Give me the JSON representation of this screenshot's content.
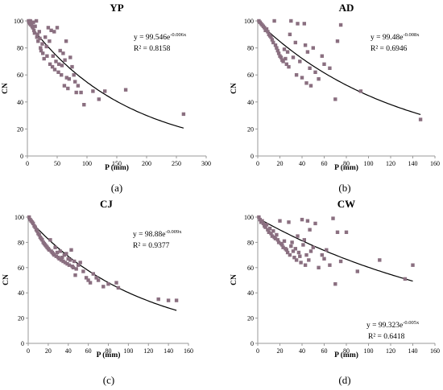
{
  "figure": {
    "panels": [
      "a",
      "b",
      "c",
      "d"
    ],
    "colors": {
      "marker": "#8a6f80",
      "curve": "#000000",
      "axis": "#999999"
    }
  },
  "chart_data": [
    {
      "type": "scatter",
      "title": "YP",
      "xlabel": "P (mm)",
      "ylabel": "CN",
      "panel_label": "(a)",
      "xlim": [
        0,
        300
      ],
      "ylim": [
        0,
        100
      ],
      "xticks": [
        "0",
        "50",
        "100",
        "150",
        "200",
        "250",
        "300"
      ],
      "yticks": [
        "0",
        "20",
        "40",
        "60",
        "80",
        "100"
      ],
      "grid": false,
      "legend": "none",
      "equation": {
        "base": "y = 99.546e",
        "exponent": "-0.006x",
        "r2": "R² = 0.8158"
      },
      "fit": {
        "a": 99.546,
        "b": -0.006
      },
      "points": [
        [
          2,
          100
        ],
        [
          3,
          99
        ],
        [
          4,
          98
        ],
        [
          5,
          100
        ],
        [
          6,
          97
        ],
        [
          7,
          98
        ],
        [
          8,
          96
        ],
        [
          9,
          95
        ],
        [
          10,
          99
        ],
        [
          11,
          93
        ],
        [
          12,
          91
        ],
        [
          13,
          96
        ],
        [
          15,
          100
        ],
        [
          16,
          88
        ],
        [
          17,
          90
        ],
        [
          18,
          85
        ],
        [
          20,
          92
        ],
        [
          21,
          87
        ],
        [
          22,
          80
        ],
        [
          23,
          78
        ],
        [
          25,
          83
        ],
        [
          26,
          76
        ],
        [
          28,
          72
        ],
        [
          30,
          88
        ],
        [
          32,
          81
        ],
        [
          33,
          74
        ],
        [
          35,
          95
        ],
        [
          37,
          85
        ],
        [
          38,
          68
        ],
        [
          40,
          93
        ],
        [
          42,
          66
        ],
        [
          43,
          74
        ],
        [
          45,
          92
        ],
        [
          46,
          64
        ],
        [
          48,
          70
        ],
        [
          50,
          95
        ],
        [
          52,
          62
        ],
        [
          53,
          68
        ],
        [
          55,
          78
        ],
        [
          57,
          60
        ],
        [
          58,
          67
        ],
        [
          60,
          76
        ],
        [
          62,
          52
        ],
        [
          63,
          71
        ],
        [
          65,
          85
        ],
        [
          66,
          58
        ],
        [
          68,
          50
        ],
        [
          70,
          57
        ],
        [
          72,
          73
        ],
        [
          75,
          66
        ],
        [
          78,
          60
        ],
        [
          80,
          55
        ],
        [
          82,
          47
        ],
        [
          85,
          52
        ],
        [
          90,
          47
        ],
        [
          95,
          38
        ],
        [
          110,
          48
        ],
        [
          120,
          42
        ],
        [
          130,
          48
        ],
        [
          165,
          49
        ],
        [
          262,
          31
        ]
      ]
    },
    {
      "type": "scatter",
      "title": "AD",
      "xlabel": "P (mm)",
      "ylabel": "CN",
      "panel_label": "(b)",
      "xlim": [
        0,
        160
      ],
      "ylim": [
        0,
        100
      ],
      "xticks": [
        "0",
        "20",
        "40",
        "60",
        "80",
        "100",
        "120",
        "140",
        "160"
      ],
      "yticks": [
        "0",
        "20",
        "40",
        "60",
        "80",
        "100"
      ],
      "grid": false,
      "legend": "none",
      "equation": {
        "base": "y = 99.48e",
        "exponent": "-0.008x",
        "r2": "R² = 0.6946"
      },
      "fit": {
        "a": 99.48,
        "b": -0.008
      },
      "points": [
        [
          1,
          100
        ],
        [
          2,
          99
        ],
        [
          3,
          98
        ],
        [
          4,
          97
        ],
        [
          5,
          96
        ],
        [
          6,
          95
        ],
        [
          7,
          93
        ],
        [
          8,
          94
        ],
        [
          9,
          92
        ],
        [
          10,
          90
        ],
        [
          11,
          89
        ],
        [
          12,
          88
        ],
        [
          13,
          86
        ],
        [
          14,
          84
        ],
        [
          15,
          100
        ],
        [
          16,
          82
        ],
        [
          17,
          80
        ],
        [
          18,
          78
        ],
        [
          19,
          76
        ],
        [
          20,
          74
        ],
        [
          21,
          73
        ],
        [
          22,
          71
        ],
        [
          23,
          70
        ],
        [
          24,
          79
        ],
        [
          25,
          72
        ],
        [
          26,
          68
        ],
        [
          27,
          77
        ],
        [
          28,
          66
        ],
        [
          29,
          90
        ],
        [
          30,
          100
        ],
        [
          32,
          73
        ],
        [
          34,
          84
        ],
        [
          35,
          60
        ],
        [
          36,
          98
        ],
        [
          38,
          70
        ],
        [
          40,
          58
        ],
        [
          42,
          98
        ],
        [
          43,
          82
        ],
        [
          44,
          54
        ],
        [
          45,
          77
        ],
        [
          47,
          65
        ],
        [
          48,
          52
        ],
        [
          50,
          80
        ],
        [
          52,
          62
        ],
        [
          55,
          57
        ],
        [
          58,
          74
        ],
        [
          60,
          68
        ],
        [
          65,
          65
        ],
        [
          70,
          42
        ],
        [
          72,
          85
        ],
        [
          75,
          97
        ],
        [
          93,
          48
        ],
        [
          147,
          27
        ]
      ]
    },
    {
      "type": "scatter",
      "title": "CJ",
      "xlabel": "P (mm)",
      "ylabel": "CN",
      "panel_label": "(c)",
      "xlim": [
        0,
        160
      ],
      "ylim": [
        0,
        100
      ],
      "xticks": [
        "0",
        "20",
        "40",
        "60",
        "80",
        "100",
        "120",
        "140",
        "160"
      ],
      "yticks": [
        "0",
        "20",
        "40",
        "60",
        "80",
        "100"
      ],
      "grid": false,
      "legend": "none",
      "equation": {
        "base": "y = 98.88e",
        "exponent": "-0.009x",
        "r2": "R² = 0.9377"
      },
      "fit": {
        "a": 98.88,
        "b": -0.009
      },
      "points": [
        [
          1,
          100
        ],
        [
          2,
          98
        ],
        [
          3,
          97
        ],
        [
          4,
          96
        ],
        [
          5,
          95
        ],
        [
          6,
          93
        ],
        [
          7,
          92
        ],
        [
          8,
          90
        ],
        [
          9,
          89
        ],
        [
          10,
          87
        ],
        [
          11,
          86
        ],
        [
          12,
          84
        ],
        [
          13,
          83
        ],
        [
          14,
          82
        ],
        [
          15,
          80
        ],
        [
          16,
          79
        ],
        [
          17,
          78
        ],
        [
          18,
          77
        ],
        [
          19,
          76
        ],
        [
          20,
          75
        ],
        [
          21,
          74
        ],
        [
          22,
          82
        ],
        [
          23,
          73
        ],
        [
          24,
          72
        ],
        [
          25,
          71
        ],
        [
          26,
          70
        ],
        [
          27,
          76
        ],
        [
          28,
          69
        ],
        [
          29,
          72
        ],
        [
          30,
          68
        ],
        [
          31,
          67
        ],
        [
          32,
          73
        ],
        [
          33,
          66
        ],
        [
          34,
          68
        ],
        [
          35,
          65
        ],
        [
          36,
          70
        ],
        [
          37,
          64
        ],
        [
          38,
          71
        ],
        [
          39,
          63
        ],
        [
          40,
          67
        ],
        [
          41,
          62
        ],
        [
          42,
          66
        ],
        [
          43,
          74
        ],
        [
          44,
          61
        ],
        [
          45,
          60
        ],
        [
          46,
          65
        ],
        [
          47,
          54
        ],
        [
          48,
          59
        ],
        [
          50,
          62
        ],
        [
          52,
          64
        ],
        [
          55,
          57
        ],
        [
          58,
          52
        ],
        [
          60,
          50
        ],
        [
          62,
          48
        ],
        [
          65,
          55
        ],
        [
          68,
          52
        ],
        [
          70,
          50
        ],
        [
          75,
          45
        ],
        [
          80,
          47
        ],
        [
          88,
          48
        ],
        [
          90,
          44
        ],
        [
          130,
          35
        ],
        [
          140,
          34
        ],
        [
          148,
          34
        ]
      ]
    },
    {
      "type": "scatter",
      "title": "CW",
      "xlabel": "P (mm)",
      "ylabel": "CN",
      "panel_label": "(d)",
      "xlim": [
        0,
        160
      ],
      "ylim": [
        0,
        100
      ],
      "xticks": [
        "0",
        "20",
        "40",
        "60",
        "80",
        "100",
        "120",
        "140",
        "160"
      ],
      "yticks": [
        "0",
        "20",
        "40",
        "60",
        "80",
        "100"
      ],
      "grid": false,
      "legend": "none",
      "equation": {
        "base": "y = 99.323e",
        "exponent": "-0.005x",
        "r2": "R² = 0.6418"
      },
      "fit": {
        "a": 99.323,
        "b": -0.005
      },
      "points": [
        [
          1,
          100
        ],
        [
          2,
          98
        ],
        [
          3,
          96
        ],
        [
          4,
          97
        ],
        [
          5,
          95
        ],
        [
          6,
          93
        ],
        [
          7,
          92
        ],
        [
          8,
          94
        ],
        [
          9,
          90
        ],
        [
          10,
          88
        ],
        [
          11,
          91
        ],
        [
          12,
          87
        ],
        [
          13,
          85
        ],
        [
          14,
          89
        ],
        [
          15,
          84
        ],
        [
          16,
          83
        ],
        [
          17,
          86
        ],
        [
          18,
          82
        ],
        [
          19,
          80
        ],
        [
          20,
          97
        ],
        [
          21,
          79
        ],
        [
          22,
          78
        ],
        [
          23,
          76
        ],
        [
          24,
          81
        ],
        [
          25,
          75
        ],
        [
          26,
          74
        ],
        [
          27,
          72
        ],
        [
          28,
          96
        ],
        [
          29,
          70
        ],
        [
          30,
          77
        ],
        [
          31,
          80
        ],
        [
          32,
          73
        ],
        [
          33,
          68
        ],
        [
          34,
          75
        ],
        [
          35,
          66
        ],
        [
          36,
          85
        ],
        [
          37,
          72
        ],
        [
          38,
          69
        ],
        [
          39,
          64
        ],
        [
          40,
          98
        ],
        [
          41,
          78
        ],
        [
          42,
          82
        ],
        [
          43,
          62
        ],
        [
          44,
          70
        ],
        [
          45,
          97
        ],
        [
          46,
          66
        ],
        [
          47,
          90
        ],
        [
          48,
          73
        ],
        [
          50,
          76
        ],
        [
          52,
          95
        ],
        [
          55,
          60
        ],
        [
          58,
          70
        ],
        [
          60,
          67
        ],
        [
          62,
          74
        ],
        [
          65,
          62
        ],
        [
          68,
          99
        ],
        [
          70,
          47
        ],
        [
          72,
          88
        ],
        [
          75,
          65
        ],
        [
          80,
          88
        ],
        [
          90,
          57
        ],
        [
          110,
          66
        ],
        [
          133,
          51
        ],
        [
          140,
          62
        ]
      ]
    }
  ]
}
